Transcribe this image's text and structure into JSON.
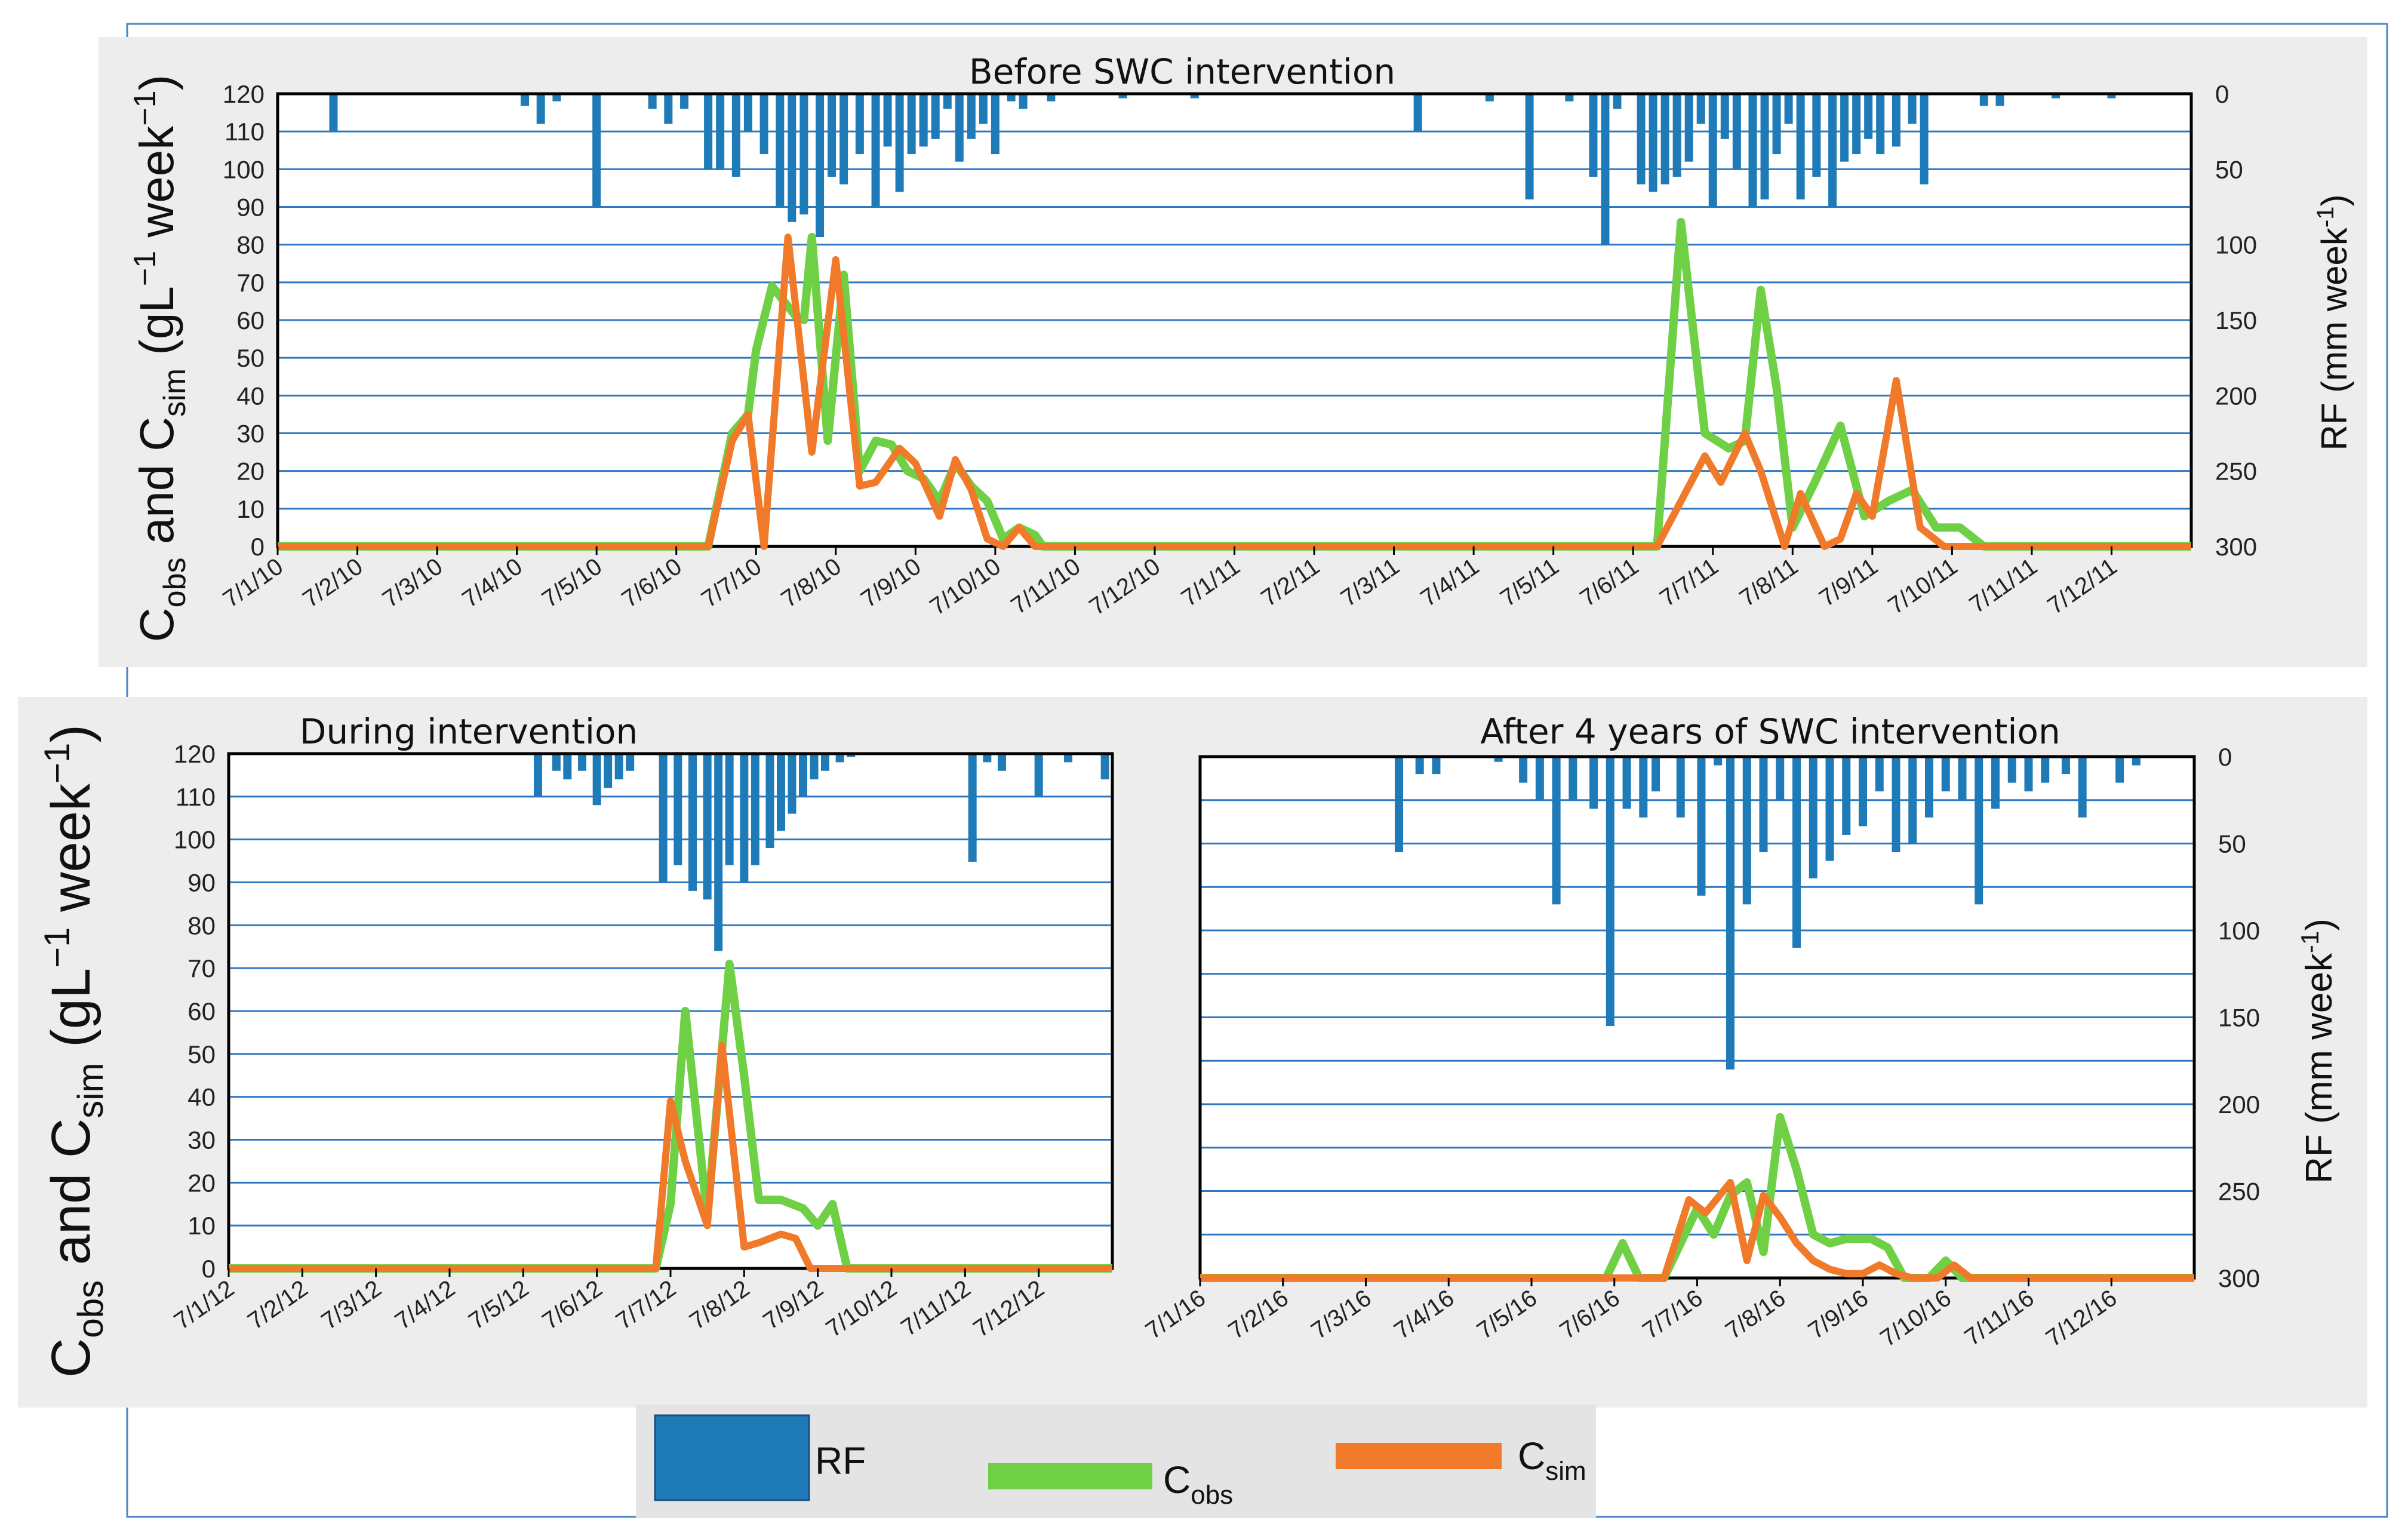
{
  "colors": {
    "rf": "#1f7ab8",
    "cobs": "#6fcf45",
    "csim": "#f07a2a",
    "grid": "#2e78c2",
    "panel_bg": "#ededed",
    "legend_bg": "#e4e4e4",
    "frame": "#4a86c8"
  },
  "legend": {
    "rf_label": "RF",
    "cobs_label": "C",
    "cobs_sub": "obs",
    "csim_label": "C",
    "csim_sub": "sim"
  },
  "shared_labels": {
    "left_axis_main": "C",
    "left_axis_sub1": "obs",
    "left_axis_mid": " and C",
    "left_axis_sub2": "sim",
    "left_axis_units": " (gL",
    "left_axis_exp": "−1",
    "left_axis_tail": " week",
    "left_axis_exp2": "−1",
    "left_axis_close": ")",
    "right_axis_main": "RF (mm week",
    "right_axis_exp": "-1",
    "right_axis_close": ")"
  },
  "chart_data": [
    {
      "type": "line+bar",
      "title": "Before SWC intervention",
      "ylim": [
        0,
        120
      ],
      "yticks": [
        "0",
        "10",
        "20",
        "30",
        "40",
        "50",
        "60",
        "70",
        "80",
        "90",
        "100",
        "110",
        "120"
      ],
      "y2lim": [
        0,
        300
      ],
      "y2ticks": [
        "0",
        "50",
        "100",
        "150",
        "200",
        "250",
        "300"
      ],
      "ylabel": "Cobs and Csim (gL−1 week−1)",
      "y2label": "RF (mm week-1)",
      "categories": [
        "7/1/10",
        "7/2/10",
        "7/3/10",
        "7/4/10",
        "7/5/10",
        "7/6/10",
        "7/7/10",
        "7/8/10",
        "7/9/10",
        "7/10/10",
        "7/11/10",
        "7/12/10",
        "7/1/11",
        "7/2/11",
        "7/3/11",
        "7/4/11",
        "7/5/11",
        "7/6/11",
        "7/7/11",
        "7/8/11",
        "7/9/11",
        "7/10/11",
        "7/11/11",
        "7/12/11"
      ],
      "x_end": 24,
      "rf": [
        [
          0.7,
          25
        ],
        [
          3.1,
          8
        ],
        [
          3.3,
          20
        ],
        [
          3.5,
          5
        ],
        [
          4.0,
          75
        ],
        [
          4.7,
          10
        ],
        [
          4.9,
          20
        ],
        [
          5.1,
          10
        ],
        [
          5.4,
          50
        ],
        [
          5.55,
          50
        ],
        [
          5.75,
          55
        ],
        [
          5.9,
          25
        ],
        [
          6.1,
          40
        ],
        [
          6.3,
          75
        ],
        [
          6.45,
          85
        ],
        [
          6.6,
          80
        ],
        [
          6.8,
          95
        ],
        [
          6.95,
          55
        ],
        [
          7.1,
          60
        ],
        [
          7.3,
          40
        ],
        [
          7.5,
          75
        ],
        [
          7.65,
          35
        ],
        [
          7.8,
          65
        ],
        [
          7.95,
          40
        ],
        [
          8.1,
          35
        ],
        [
          8.25,
          30
        ],
        [
          8.4,
          10
        ],
        [
          8.55,
          45
        ],
        [
          8.7,
          30
        ],
        [
          8.85,
          20
        ],
        [
          9.0,
          40
        ],
        [
          9.2,
          5
        ],
        [
          9.35,
          10
        ],
        [
          9.7,
          5
        ],
        [
          10.6,
          3
        ],
        [
          11.5,
          3
        ],
        [
          14.3,
          25
        ],
        [
          15.2,
          5
        ],
        [
          15.7,
          70
        ],
        [
          16.2,
          5
        ],
        [
          16.5,
          55
        ],
        [
          16.65,
          100
        ],
        [
          16.8,
          10
        ],
        [
          17.1,
          60
        ],
        [
          17.25,
          65
        ],
        [
          17.4,
          60
        ],
        [
          17.55,
          55
        ],
        [
          17.7,
          45
        ],
        [
          17.85,
          20
        ],
        [
          18.0,
          75
        ],
        [
          18.15,
          30
        ],
        [
          18.3,
          50
        ],
        [
          18.5,
          75
        ],
        [
          18.65,
          70
        ],
        [
          18.8,
          40
        ],
        [
          18.95,
          20
        ],
        [
          19.1,
          70
        ],
        [
          19.3,
          55
        ],
        [
          19.5,
          75
        ],
        [
          19.65,
          45
        ],
        [
          19.8,
          40
        ],
        [
          19.95,
          30
        ],
        [
          20.1,
          40
        ],
        [
          20.3,
          35
        ],
        [
          20.5,
          20
        ],
        [
          20.65,
          60
        ],
        [
          21.4,
          8
        ],
        [
          21.6,
          8
        ],
        [
          22.3,
          3
        ],
        [
          23.0,
          3
        ]
      ],
      "cobs": [
        [
          0,
          0
        ],
        [
          5.4,
          0
        ],
        [
          5.7,
          30
        ],
        [
          5.9,
          35
        ],
        [
          6.0,
          52
        ],
        [
          6.2,
          69
        ],
        [
          6.5,
          61
        ],
        [
          6.6,
          60
        ],
        [
          6.7,
          82
        ],
        [
          6.9,
          28
        ],
        [
          7.1,
          72
        ],
        [
          7.3,
          20
        ],
        [
          7.5,
          28
        ],
        [
          7.7,
          27
        ],
        [
          7.9,
          20
        ],
        [
          8.1,
          18
        ],
        [
          8.3,
          12
        ],
        [
          8.5,
          22
        ],
        [
          8.7,
          16
        ],
        [
          8.9,
          12
        ],
        [
          9.1,
          2
        ],
        [
          9.3,
          5
        ],
        [
          9.5,
          3
        ],
        [
          9.6,
          0
        ],
        [
          17.3,
          0
        ],
        [
          17.6,
          86
        ],
        [
          17.9,
          30
        ],
        [
          18.2,
          26
        ],
        [
          18.4,
          28
        ],
        [
          18.6,
          68
        ],
        [
          18.8,
          42
        ],
        [
          19.0,
          5
        ],
        [
          19.3,
          18
        ],
        [
          19.6,
          32
        ],
        [
          19.9,
          8
        ],
        [
          20.2,
          12
        ],
        [
          20.5,
          15
        ],
        [
          20.8,
          5
        ],
        [
          21.1,
          5
        ],
        [
          21.4,
          0
        ],
        [
          24,
          0
        ]
      ],
      "csim": [
        [
          0,
          0
        ],
        [
          5.4,
          0
        ],
        [
          5.7,
          28
        ],
        [
          5.9,
          35
        ],
        [
          6.1,
          0
        ],
        [
          6.4,
          82
        ],
        [
          6.7,
          25
        ],
        [
          7.0,
          76
        ],
        [
          7.3,
          16
        ],
        [
          7.5,
          17
        ],
        [
          7.8,
          26
        ],
        [
          8.0,
          22
        ],
        [
          8.3,
          8
        ],
        [
          8.5,
          23
        ],
        [
          8.7,
          15
        ],
        [
          8.9,
          2
        ],
        [
          9.1,
          0
        ],
        [
          9.3,
          5
        ],
        [
          9.5,
          0
        ],
        [
          17.3,
          0
        ],
        [
          17.6,
          12
        ],
        [
          17.9,
          24
        ],
        [
          18.1,
          17
        ],
        [
          18.4,
          30
        ],
        [
          18.6,
          20
        ],
        [
          18.9,
          0
        ],
        [
          19.1,
          14
        ],
        [
          19.4,
          0
        ],
        [
          19.6,
          2
        ],
        [
          19.8,
          14
        ],
        [
          20.0,
          8
        ],
        [
          20.3,
          44
        ],
        [
          20.6,
          5
        ],
        [
          20.9,
          0
        ],
        [
          24,
          0
        ]
      ]
    },
    {
      "type": "line+bar",
      "title": "During intervention",
      "ylim": [
        0,
        120
      ],
      "yticks": [
        "0",
        "10",
        "20",
        "30",
        "40",
        "50",
        "60",
        "70",
        "80",
        "90",
        "100",
        "110",
        "120"
      ],
      "categories": [
        "7/1/12",
        "7/2/12",
        "7/3/12",
        "7/4/12",
        "7/5/12",
        "7/6/12",
        "7/7/12",
        "7/8/12",
        "7/9/12",
        "7/10/12",
        "7/11/12",
        "7/12/12"
      ],
      "x_end": 12,
      "rf": [
        [
          4.2,
          25
        ],
        [
          4.45,
          10
        ],
        [
          4.6,
          15
        ],
        [
          4.8,
          10
        ],
        [
          5.0,
          30
        ],
        [
          5.15,
          20
        ],
        [
          5.3,
          15
        ],
        [
          5.45,
          10
        ],
        [
          5.9,
          75
        ],
        [
          6.1,
          65
        ],
        [
          6.3,
          80
        ],
        [
          6.5,
          85
        ],
        [
          6.65,
          115
        ],
        [
          6.8,
          65
        ],
        [
          7.0,
          75
        ],
        [
          7.15,
          65
        ],
        [
          7.35,
          55
        ],
        [
          7.5,
          45
        ],
        [
          7.65,
          35
        ],
        [
          7.8,
          25
        ],
        [
          7.95,
          15
        ],
        [
          8.1,
          10
        ],
        [
          8.3,
          5
        ],
        [
          8.45,
          2
        ],
        [
          10.1,
          63
        ],
        [
          10.3,
          5
        ],
        [
          10.5,
          10
        ],
        [
          11.0,
          25
        ],
        [
          11.4,
          5
        ],
        [
          11.9,
          15
        ]
      ],
      "cobs": [
        [
          0,
          0
        ],
        [
          5.8,
          0
        ],
        [
          6.0,
          15
        ],
        [
          6.2,
          60
        ],
        [
          6.5,
          12
        ],
        [
          6.8,
          71
        ],
        [
          7.0,
          45
        ],
        [
          7.2,
          16
        ],
        [
          7.5,
          16
        ],
        [
          7.8,
          14
        ],
        [
          8.0,
          10
        ],
        [
          8.2,
          15
        ],
        [
          8.4,
          0
        ],
        [
          12,
          0
        ]
      ],
      "csim": [
        [
          0,
          0
        ],
        [
          5.8,
          0
        ],
        [
          6.0,
          39
        ],
        [
          6.2,
          25
        ],
        [
          6.5,
          10
        ],
        [
          6.7,
          52
        ],
        [
          7.0,
          5
        ],
        [
          7.2,
          6
        ],
        [
          7.5,
          8
        ],
        [
          7.7,
          7
        ],
        [
          7.9,
          0
        ],
        [
          12,
          0
        ]
      ]
    },
    {
      "type": "line+bar",
      "title": "After 4 years of SWC intervention",
      "y2lim": [
        0,
        300
      ],
      "y2ticks": [
        "0",
        "50",
        "100",
        "150",
        "200",
        "250",
        "300"
      ],
      "categories": [
        "7/1/16",
        "7/2/16",
        "7/3/16",
        "7/4/16",
        "7/5/16",
        "7/6/16",
        "7/7/16",
        "7/8/16",
        "7/9/16",
        "7/10/16",
        "7/11/16",
        "7/12/16"
      ],
      "x_end": 12,
      "rf": [
        [
          2.4,
          55
        ],
        [
          2.65,
          10
        ],
        [
          2.85,
          10
        ],
        [
          3.6,
          3
        ],
        [
          3.9,
          15
        ],
        [
          4.1,
          25
        ],
        [
          4.3,
          85
        ],
        [
          4.5,
          25
        ],
        [
          4.75,
          30
        ],
        [
          4.95,
          155
        ],
        [
          5.15,
          30
        ],
        [
          5.35,
          35
        ],
        [
          5.5,
          20
        ],
        [
          5.8,
          35
        ],
        [
          6.05,
          80
        ],
        [
          6.25,
          5
        ],
        [
          6.4,
          180
        ],
        [
          6.6,
          85
        ],
        [
          6.8,
          55
        ],
        [
          7.0,
          25
        ],
        [
          7.2,
          110
        ],
        [
          7.4,
          70
        ],
        [
          7.6,
          60
        ],
        [
          7.8,
          45
        ],
        [
          8.0,
          40
        ],
        [
          8.2,
          20
        ],
        [
          8.4,
          55
        ],
        [
          8.6,
          50
        ],
        [
          8.8,
          35
        ],
        [
          9.0,
          20
        ],
        [
          9.2,
          25
        ],
        [
          9.4,
          85
        ],
        [
          9.6,
          30
        ],
        [
          9.8,
          15
        ],
        [
          10.0,
          20
        ],
        [
          10.2,
          15
        ],
        [
          10.45,
          10
        ],
        [
          10.65,
          35
        ],
        [
          11.1,
          15
        ],
        [
          11.3,
          5
        ]
      ],
      "cobs": [
        [
          0,
          0
        ],
        [
          4.9,
          0
        ],
        [
          5.1,
          8
        ],
        [
          5.3,
          0
        ],
        [
          5.6,
          0
        ],
        [
          6.0,
          16
        ],
        [
          6.2,
          10
        ],
        [
          6.4,
          19
        ],
        [
          6.6,
          22
        ],
        [
          6.8,
          6
        ],
        [
          7.0,
          37
        ],
        [
          7.2,
          25
        ],
        [
          7.4,
          10
        ],
        [
          7.6,
          8
        ],
        [
          7.8,
          9
        ],
        [
          8.1,
          9
        ],
        [
          8.3,
          7
        ],
        [
          8.5,
          0
        ],
        [
          8.8,
          0
        ],
        [
          9.0,
          4
        ],
        [
          9.2,
          0
        ],
        [
          12,
          0
        ]
      ],
      "csim": [
        [
          0,
          0
        ],
        [
          5.6,
          0
        ],
        [
          5.9,
          18
        ],
        [
          6.1,
          15
        ],
        [
          6.4,
          22
        ],
        [
          6.6,
          4
        ],
        [
          6.8,
          19
        ],
        [
          7.0,
          14
        ],
        [
          7.2,
          8
        ],
        [
          7.4,
          4
        ],
        [
          7.6,
          2
        ],
        [
          7.8,
          1
        ],
        [
          8.0,
          1
        ],
        [
          8.2,
          3
        ],
        [
          8.4,
          1
        ],
        [
          8.6,
          0
        ],
        [
          8.9,
          0
        ],
        [
          9.1,
          3
        ],
        [
          9.3,
          0
        ],
        [
          12,
          0
        ]
      ]
    }
  ]
}
